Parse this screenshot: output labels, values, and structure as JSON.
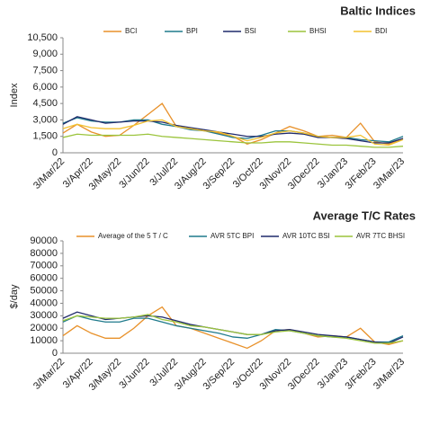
{
  "chart_data": [
    {
      "type": "line",
      "title": "Baltic Indices",
      "y_label": "Index",
      "categories": [
        "3/Mar/22",
        null,
        "3/Apr/22",
        null,
        "3/May/22",
        null,
        "3/Jun/22",
        null,
        "3/Jul/22",
        null,
        "3/Aug/22",
        null,
        "3/Sep/22",
        null,
        "3/Oct/22",
        null,
        "3/Nov/22",
        null,
        "3/Dec/22",
        null,
        "3/Jan/23",
        null,
        "3/Feb/23",
        null,
        "3/Mar/23"
      ],
      "ylim": [
        0,
        10500
      ],
      "yticks": [
        0,
        {
          "value": 1500,
          "label": "1,500"
        },
        {
          "value": 3000,
          "label": "3,000"
        },
        {
          "value": 4500,
          "label": "4,500"
        },
        {
          "value": 6000,
          "label": "6,000"
        },
        {
          "value": 7500,
          "label": "7,500"
        },
        {
          "value": 9000,
          "label": "9,000"
        },
        {
          "value": 10500,
          "label": "10,500"
        }
      ],
      "series": [
        {
          "name": "BCI",
          "color": "#e8912a",
          "values": [
            1800,
            2600,
            1900,
            1500,
            1600,
            2500,
            3500,
            4500,
            2400,
            2200,
            2000,
            1800,
            1500,
            800,
            1200,
            1800,
            2400,
            2000,
            1500,
            1600,
            1400,
            2700,
            1000,
            800,
            1300
          ]
        },
        {
          "name": "BPI",
          "color": "#1f7a8c",
          "values": [
            2700,
            3200,
            2900,
            2800,
            2800,
            3000,
            3000,
            2600,
            2400,
            2100,
            2000,
            1700,
            1400,
            1300,
            1600,
            2000,
            2000,
            1800,
            1500,
            1400,
            1400,
            1200,
            1100,
            1000,
            1500
          ]
        },
        {
          "name": "BSI",
          "color": "#1f2a6b",
          "values": [
            2600,
            3300,
            3000,
            2700,
            2800,
            2900,
            2900,
            2800,
            2500,
            2300,
            2100,
            1900,
            1700,
            1500,
            1500,
            1700,
            1800,
            1700,
            1400,
            1400,
            1300,
            1100,
            900,
            900,
            1300
          ]
        },
        {
          "name": "BHSI",
          "color": "#9bc43c",
          "values": [
            1400,
            1700,
            1600,
            1600,
            1600,
            1600,
            1700,
            1500,
            1400,
            1300,
            1200,
            1100,
            1000,
            900,
            900,
            1000,
            1000,
            900,
            800,
            700,
            700,
            600,
            500,
            500,
            600
          ]
        },
        {
          "name": "BDI",
          "color": "#f2c12e",
          "values": [
            2200,
            2600,
            2300,
            2200,
            2200,
            2500,
            2900,
            3000,
            2400,
            2200,
            2000,
            1900,
            1500,
            1100,
            1400,
            1800,
            2000,
            1800,
            1500,
            1400,
            1400,
            1600,
            800,
            700,
            1200
          ]
        }
      ]
    },
    {
      "type": "line",
      "title": "Average T/C Rates",
      "y_label": "$/day",
      "categories": [
        "3/Mar/22",
        null,
        "3/Apr/22",
        null,
        "3/May/22",
        null,
        "3/Jun/22",
        null,
        "3/Jul/22",
        null,
        "3/Aug/22",
        null,
        "3/Sep/22",
        null,
        "3/Oct/22",
        null,
        "3/Nov/22",
        null,
        "3/Dec/22",
        null,
        "3/Jan/23",
        null,
        "3/Feb/23",
        null,
        "3/Mar/23"
      ],
      "ylim": [
        0,
        90000
      ],
      "yticks": [
        0,
        10000,
        20000,
        30000,
        40000,
        50000,
        60000,
        70000,
        80000,
        90000
      ],
      "series": [
        {
          "name": "Average of the 5 T / C",
          "color": "#e8912a",
          "values": [
            14000,
            22000,
            16000,
            12000,
            12000,
            20000,
            30000,
            37000,
            22000,
            20000,
            16000,
            12000,
            8000,
            4000,
            10000,
            18000,
            19000,
            16000,
            13000,
            14000,
            13000,
            20000,
            9000,
            7000,
            10000
          ]
        },
        {
          "name": "AVR 5TC BPI",
          "color": "#1f7a8c",
          "values": [
            25000,
            30000,
            27000,
            25000,
            25000,
            28000,
            28000,
            25000,
            22000,
            20000,
            18000,
            16000,
            13000,
            12000,
            15000,
            19000,
            18000,
            16000,
            14000,
            13000,
            13000,
            11000,
            9000,
            9000,
            14000
          ]
        },
        {
          "name": "AVR 10TC BSI",
          "color": "#1f2a6b",
          "values": [
            28000,
            33000,
            30000,
            27000,
            28000,
            29000,
            30000,
            29000,
            26000,
            23000,
            21000,
            19000,
            17000,
            15000,
            15000,
            18000,
            19000,
            17000,
            15000,
            14000,
            13000,
            11000,
            9000,
            8000,
            13000
          ]
        },
        {
          "name": "AVR 7TC BHSI",
          "color": "#9bc43c",
          "values": [
            26000,
            30000,
            29000,
            28000,
            28000,
            29000,
            31000,
            27000,
            25000,
            22000,
            21000,
            19000,
            17000,
            15000,
            15000,
            17000,
            18000,
            16000,
            14000,
            13000,
            12000,
            10000,
            8000,
            8000,
            10000
          ]
        }
      ]
    }
  ]
}
